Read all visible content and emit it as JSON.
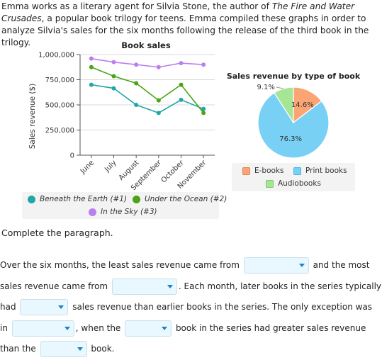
{
  "intro": {
    "part1": "Emma works as a literary agent for Silvia Stone, the author of ",
    "book_title": "The Fire and Water Crusades",
    "part2": ", a popular book trilogy for teens. Emma compiled these graphs in order to analyze Silvia's sales for the six months following the release of the third book in the trilogy."
  },
  "chart_data": [
    {
      "type": "line",
      "title": "Book sales",
      "ylabel": "Sales revenue ($)",
      "xlabel": "",
      "categories": [
        "June",
        "July",
        "August",
        "September",
        "October",
        "November"
      ],
      "ylim": [
        0,
        1000000
      ],
      "yticks": [
        0,
        250000,
        500000,
        750000,
        1000000
      ],
      "ytick_labels": [
        "0",
        "250,000",
        "500,000",
        "750,000",
        "1,000,000"
      ],
      "grid": "horizontal",
      "legend_placement": "bottom",
      "series": [
        {
          "name": "Beneath the Earth (#1)",
          "color": "#20a7a7",
          "values": [
            700000,
            665000,
            500000,
            420000,
            550000,
            460000
          ]
        },
        {
          "name": "Under the Ocean (#2)",
          "color": "#4aa416",
          "values": [
            875000,
            785000,
            715000,
            545000,
            700000,
            420000
          ]
        },
        {
          "name": "In the Sky (#3)",
          "color": "#b97ef0",
          "values": [
            960000,
            925000,
            900000,
            875000,
            915000,
            900000
          ]
        }
      ]
    },
    {
      "type": "pie",
      "title": "Sales revenue by type of book",
      "legend_placement": "bottom",
      "slices": [
        {
          "name": "E-books",
          "value": 14.6,
          "label": "14.6%",
          "color": "#fba574",
          "stroke": "#e0845a"
        },
        {
          "name": "Print books",
          "value": 76.3,
          "label": "76.3%",
          "color": "#78d0f5",
          "stroke": "#4db4e0"
        },
        {
          "name": "Audiobooks",
          "value": 9.1,
          "label": "9.1%",
          "color": "#a6e594",
          "stroke": "#7cc96a"
        }
      ]
    }
  ],
  "prompt": "Complete the paragraph.",
  "paragraph": {
    "t1": "Over the six months, the least sales revenue came from ",
    "t2": " and the most sales revenue came from ",
    "t3": ". Each month, later books in the series typically had ",
    "t4": " sales revenue than earlier books in the series. The only exception was in ",
    "t5": ", when the ",
    "t6": " book in the series had greater sales revenue than the ",
    "t7": " book."
  },
  "colors": {
    "accent": "#1a85c6",
    "dropdown_bg": "#e9f7fe"
  }
}
